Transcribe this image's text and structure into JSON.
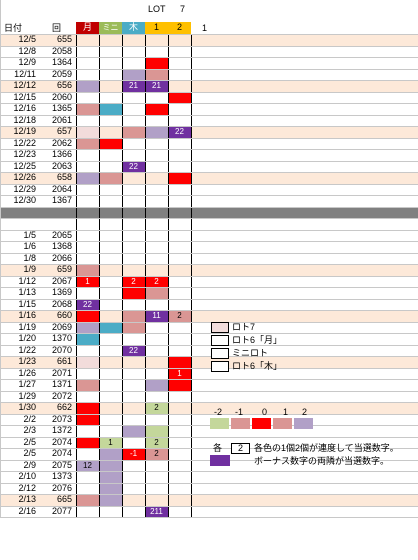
{
  "header": {
    "col_date": "日付",
    "col_round": "回",
    "mon": "月",
    "mini": "ミニ",
    "wood": "木",
    "lot_label": "LOT",
    "lot_num": "7",
    "lot_sub1": "1",
    "lot_sub2": "2",
    "extra": "1"
  },
  "colors": {
    "red": "#ff0000",
    "pink": "#da9694",
    "lpink": "#f2dcdb",
    "lav": "#b1a0c7",
    "purple": "#7030a0",
    "teal": "#4bacc6",
    "green": "#c4d79b",
    "gray": "#808080",
    "orange": "#ffc000",
    "dred": "#c00000",
    "dgreen": "#9bbb59",
    "band": "#fde9d9"
  },
  "rows": [
    {
      "date": "12/5",
      "round": "655",
      "c": [
        "",
        "",
        "",
        "",
        ""
      ]
    },
    {
      "date": "12/8",
      "round": "2058",
      "c": [
        "",
        "",
        "",
        "",
        ""
      ]
    },
    {
      "date": "12/9",
      "round": "1364",
      "c": [
        "",
        "",
        "",
        "red",
        ""
      ]
    },
    {
      "date": "12/11",
      "round": "2059",
      "c": [
        "",
        "",
        "lav",
        "pink",
        ""
      ]
    },
    {
      "date": "12/12",
      "round": "656",
      "c": [
        "lav",
        "",
        "purple:21",
        "purple:21",
        ""
      ]
    },
    {
      "date": "12/15",
      "round": "2060",
      "c": [
        "",
        "",
        "",
        "",
        "red"
      ]
    },
    {
      "date": "12/16",
      "round": "1365",
      "c": [
        "pink",
        "teal",
        "",
        "red",
        ""
      ]
    },
    {
      "date": "12/18",
      "round": "2061",
      "c": [
        "",
        "",
        "",
        "",
        ""
      ]
    },
    {
      "date": "12/19",
      "round": "657",
      "c": [
        "lpink",
        "",
        "pink",
        "lav",
        "purple:22"
      ]
    },
    {
      "date": "12/22",
      "round": "2062",
      "c": [
        "pink",
        "red",
        "",
        "",
        ""
      ]
    },
    {
      "date": "12/23",
      "round": "1366",
      "c": [
        "",
        "",
        "",
        "",
        ""
      ]
    },
    {
      "date": "12/25",
      "round": "2063",
      "c": [
        "",
        "",
        "purple:22",
        "",
        ""
      ]
    },
    {
      "date": "12/26",
      "round": "658",
      "c": [
        "lav",
        "pink",
        "",
        "",
        "red"
      ]
    },
    {
      "date": "12/29",
      "round": "2064",
      "c": [
        "",
        "",
        "",
        "",
        ""
      ]
    },
    {
      "date": "12/30",
      "round": "1367",
      "c": [
        "",
        "",
        "",
        "",
        ""
      ]
    },
    {
      "date": "",
      "round": "",
      "c": [
        "gray",
        "gray",
        "gray",
        "gray",
        "gray"
      ]
    },
    {
      "date": "",
      "round": "",
      "c": [
        "",
        "",
        "",
        "",
        ""
      ]
    },
    {
      "date": "1/5",
      "round": "2065",
      "c": [
        "",
        "",
        "",
        "",
        ""
      ]
    },
    {
      "date": "1/6",
      "round": "1368",
      "c": [
        "",
        "",
        "",
        "",
        ""
      ]
    },
    {
      "date": "1/8",
      "round": "2066",
      "c": [
        "",
        "",
        "",
        "",
        ""
      ]
    },
    {
      "date": "1/9",
      "round": "659",
      "c": [
        "pink",
        "",
        "",
        "",
        ""
      ]
    },
    {
      "date": "1/12",
      "round": "2067",
      "c": [
        "red:1",
        "",
        "red:2",
        "red:2",
        ""
      ]
    },
    {
      "date": "1/13",
      "round": "1369",
      "c": [
        "",
        "",
        "red",
        "pink",
        ""
      ]
    },
    {
      "date": "1/15",
      "round": "2068",
      "c": [
        "purple:22",
        "",
        "",
        "",
        ""
      ]
    },
    {
      "date": "1/16",
      "round": "660",
      "c": [
        "red",
        "",
        "pink",
        "purple:11",
        "pink:2"
      ]
    },
    {
      "date": "1/19",
      "round": "2069",
      "c": [
        "lav",
        "teal",
        "pink",
        "",
        ""
      ]
    },
    {
      "date": "1/20",
      "round": "1370",
      "c": [
        "teal",
        "",
        "",
        "",
        ""
      ]
    },
    {
      "date": "1/22",
      "round": "2070",
      "c": [
        "",
        "",
        "purple:22",
        "",
        ""
      ]
    },
    {
      "date": "1/23",
      "round": "661",
      "c": [
        "lpink",
        "",
        "",
        "",
        "red"
      ]
    },
    {
      "date": "1/26",
      "round": "2071",
      "c": [
        "",
        "",
        "",
        "",
        "red:1"
      ]
    },
    {
      "date": "1/27",
      "round": "1371",
      "c": [
        "pink",
        "",
        "",
        "lav",
        "red"
      ]
    },
    {
      "date": "1/29",
      "round": "2072",
      "c": [
        "",
        "",
        "",
        "",
        ""
      ]
    },
    {
      "date": "1/30",
      "round": "662",
      "c": [
        "red",
        "",
        "",
        "green:2",
        ""
      ]
    },
    {
      "date": "2/2",
      "round": "2073",
      "c": [
        "red",
        "",
        "",
        "",
        ""
      ]
    },
    {
      "date": "2/3",
      "round": "1372",
      "c": [
        "",
        "",
        "lav",
        "green",
        ""
      ]
    },
    {
      "date": "2/5",
      "round": "2074",
      "c": [
        "red",
        "green:1",
        "",
        "green:2",
        ""
      ]
    },
    {
      "date": "2/5",
      "round": "2074",
      "c": [
        "",
        "lav",
        "red:-1",
        "pink:2",
        ""
      ]
    },
    {
      "date": "2/9",
      "round": "2075",
      "c": [
        "lav:12",
        "lav",
        "",
        "",
        ""
      ]
    },
    {
      "date": "2/10",
      "round": "1373",
      "c": [
        "",
        "lav",
        "",
        "",
        ""
      ]
    },
    {
      "date": "2/12",
      "round": "2076",
      "c": [
        "",
        "lav",
        "",
        "",
        ""
      ]
    },
    {
      "date": "2/13",
      "round": "665",
      "c": [
        "pink",
        "lav",
        "",
        "",
        ""
      ]
    },
    {
      "date": "2/16",
      "round": "2077",
      "c": [
        "",
        "",
        "",
        "purple:211",
        ""
      ]
    }
  ],
  "banded_rows": [
    0,
    4,
    8,
    12,
    20,
    24,
    28,
    32,
    40
  ],
  "legend": {
    "items": [
      "ロト7",
      "ロト6「月」",
      "ミニロト",
      "ロト6「木」"
    ]
  },
  "scale": {
    "labels": [
      "-2",
      "-1",
      "0",
      "1",
      "2"
    ],
    "colors": [
      "green",
      "pink",
      "red",
      "pink",
      "lav"
    ]
  },
  "note": {
    "prefix": "各",
    "box_value": "2",
    "line1": "各色の1個2個が連度して当選数字。",
    "line2": "ボーナス数字の両隣が当選数字。"
  }
}
